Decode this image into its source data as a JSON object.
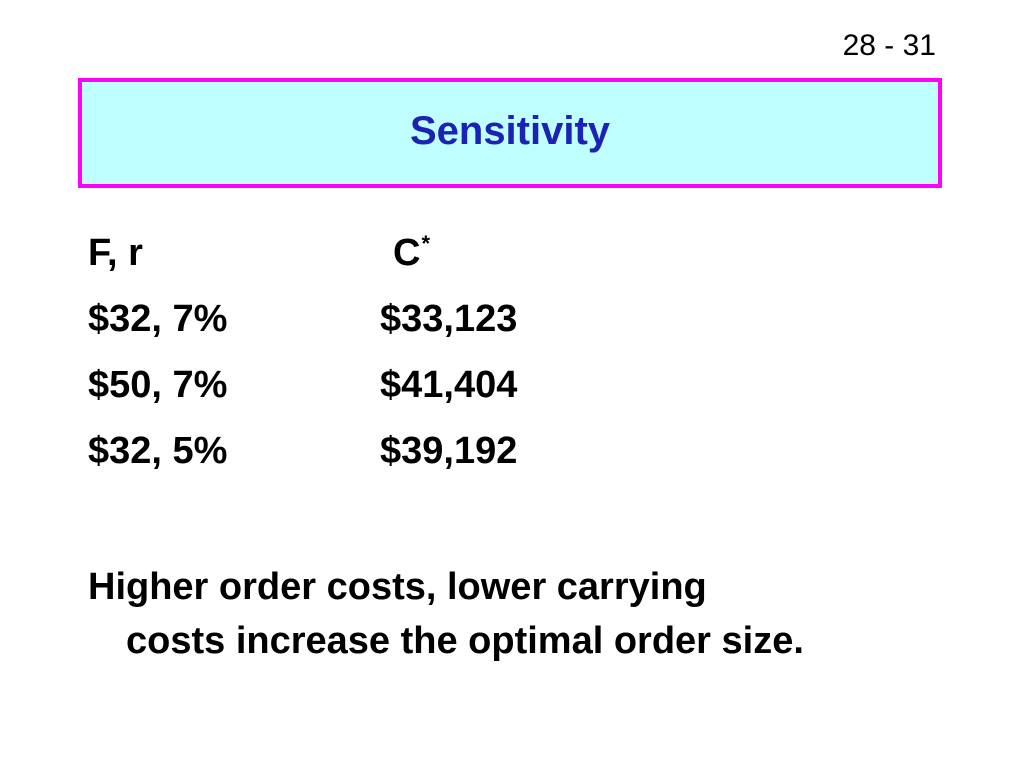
{
  "slide": {
    "page_number": "28 - 31",
    "title": "Sensitivity",
    "accent_colors": {
      "title_text": "#1c22b5",
      "title_border": "#ff00ff",
      "title_fill": "#c0ffff"
    }
  },
  "table": {
    "header": {
      "col1": "F, r",
      "col2": "C",
      "col2_superscript": "*"
    },
    "rows": [
      {
        "col1": "$32, 7%",
        "col2": "$33,123"
      },
      {
        "col1": "$50, 7%",
        "col2": "$41,404"
      },
      {
        "col1": "$32, 5%",
        "col2": "$39,192"
      }
    ]
  },
  "conclusion": {
    "line1": "Higher order costs, lower carrying",
    "line2": "costs increase the optimal order size."
  }
}
